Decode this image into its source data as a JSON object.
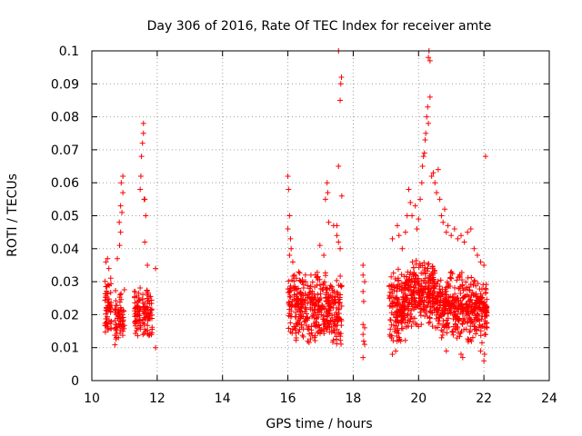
{
  "chart_data": {
    "type": "scatter",
    "title": "Day 306 of 2016, Rate Of TEC Index for receiver amte",
    "xlabel": "GPS time / hours",
    "ylabel": "ROTI / TECUs",
    "xlim": [
      10,
      24
    ],
    "ylim": [
      0,
      0.1
    ],
    "grid": true,
    "marker": "+",
    "x_ticks": [
      {
        "value": 10,
        "label": "10"
      },
      {
        "value": 12,
        "label": "12"
      },
      {
        "value": 14,
        "label": "14"
      },
      {
        "value": 16,
        "label": "16"
      },
      {
        "value": 18,
        "label": "18"
      },
      {
        "value": 20,
        "label": "20"
      },
      {
        "value": 22,
        "label": "22"
      },
      {
        "value": 24,
        "label": "24"
      }
    ],
    "y_ticks": [
      {
        "value": 0,
        "label": "0"
      },
      {
        "value": 0.01,
        "label": "0.01"
      },
      {
        "value": 0.02,
        "label": "0.02"
      },
      {
        "value": 0.03,
        "label": "0.03"
      },
      {
        "value": 0.04,
        "label": "0.04"
      },
      {
        "value": 0.05,
        "label": "0.05"
      },
      {
        "value": 0.06,
        "label": "0.06"
      },
      {
        "value": 0.07,
        "label": "0.07"
      },
      {
        "value": 0.08,
        "label": "0.08"
      },
      {
        "value": 0.09,
        "label": "0.09"
      },
      {
        "value": 0.1,
        "label": "0.1"
      }
    ],
    "series": [
      {
        "name": "ROTI",
        "color": "#ff0000",
        "clusters": [
          {
            "x_range": [
              10.4,
              10.6
            ],
            "y_range": [
              0.012,
              0.032
            ],
            "count": 60
          },
          {
            "x_range": [
              10.7,
              11.0
            ],
            "y_range": [
              0.01,
              0.03
            ],
            "count": 70
          },
          {
            "x_range": [
              11.3,
              11.5
            ],
            "y_range": [
              0.012,
              0.03
            ],
            "count": 55
          },
          {
            "x_range": [
              11.55,
              11.85
            ],
            "y_range": [
              0.012,
              0.03
            ],
            "count": 70
          },
          {
            "x_range": [
              16.0,
              16.5
            ],
            "y_range": [
              0.012,
              0.034
            ],
            "count": 130
          },
          {
            "x_range": [
              16.5,
              17.2
            ],
            "y_range": [
              0.01,
              0.034
            ],
            "count": 170
          },
          {
            "x_range": [
              17.2,
              17.65
            ],
            "y_range": [
              0.01,
              0.034
            ],
            "count": 120
          },
          {
            "x_range": [
              19.1,
              19.6
            ],
            "y_range": [
              0.01,
              0.034
            ],
            "count": 150
          },
          {
            "x_range": [
              19.6,
              20.5
            ],
            "y_range": [
              0.015,
              0.038
            ],
            "count": 260
          },
          {
            "x_range": [
              20.5,
              21.5
            ],
            "y_range": [
              0.012,
              0.034
            ],
            "count": 260
          },
          {
            "x_range": [
              21.5,
              22.1
            ],
            "y_range": [
              0.01,
              0.032
            ],
            "count": 170
          }
        ],
        "points": [
          [
            10.43,
            0.036
          ],
          [
            10.48,
            0.037
          ],
          [
            10.52,
            0.034
          ],
          [
            10.78,
            0.037
          ],
          [
            10.85,
            0.041
          ],
          [
            10.88,
            0.045
          ],
          [
            10.84,
            0.048
          ],
          [
            10.92,
            0.051
          ],
          [
            10.95,
            0.057
          ],
          [
            10.9,
            0.06
          ],
          [
            10.95,
            0.062
          ],
          [
            10.88,
            0.053
          ],
          [
            11.48,
            0.058
          ],
          [
            11.5,
            0.062
          ],
          [
            11.52,
            0.068
          ],
          [
            11.55,
            0.072
          ],
          [
            11.58,
            0.075
          ],
          [
            11.58,
            0.078
          ],
          [
            11.6,
            0.055
          ],
          [
            11.62,
            0.055
          ],
          [
            11.65,
            0.05
          ],
          [
            11.62,
            0.042
          ],
          [
            11.7,
            0.035
          ],
          [
            11.95,
            0.034
          ],
          [
            11.95,
            0.01
          ],
          [
            16.0,
            0.062
          ],
          [
            16.02,
            0.058
          ],
          [
            16.05,
            0.05
          ],
          [
            16.0,
            0.046
          ],
          [
            16.08,
            0.043
          ],
          [
            16.1,
            0.04
          ],
          [
            16.05,
            0.038
          ],
          [
            16.15,
            0.036
          ],
          [
            16.98,
            0.041
          ],
          [
            17.1,
            0.038
          ],
          [
            17.15,
            0.055
          ],
          [
            17.2,
            0.06
          ],
          [
            17.22,
            0.057
          ],
          [
            17.25,
            0.048
          ],
          [
            17.4,
            0.047
          ],
          [
            17.5,
            0.047
          ],
          [
            17.5,
            0.044
          ],
          [
            17.55,
            0.042
          ],
          [
            17.6,
            0.04
          ],
          [
            17.55,
            0.065
          ],
          [
            17.6,
            0.085
          ],
          [
            17.62,
            0.09
          ],
          [
            17.64,
            0.092
          ],
          [
            17.55,
            0.1
          ],
          [
            17.65,
            0.056
          ],
          [
            18.3,
            0.035
          ],
          [
            18.3,
            0.032
          ],
          [
            18.35,
            0.03
          ],
          [
            18.3,
            0.027
          ],
          [
            18.32,
            0.024
          ],
          [
            18.3,
            0.017
          ],
          [
            18.35,
            0.016
          ],
          [
            18.3,
            0.014
          ],
          [
            18.32,
            0.012
          ],
          [
            18.35,
            0.011
          ],
          [
            18.3,
            0.007
          ],
          [
            19.2,
            0.043
          ],
          [
            19.35,
            0.047
          ],
          [
            19.4,
            0.044
          ],
          [
            19.5,
            0.04
          ],
          [
            19.6,
            0.045
          ],
          [
            19.65,
            0.05
          ],
          [
            19.7,
            0.058
          ],
          [
            19.75,
            0.054
          ],
          [
            19.8,
            0.05
          ],
          [
            19.9,
            0.053
          ],
          [
            19.95,
            0.046
          ],
          [
            20.0,
            0.049
          ],
          [
            20.05,
            0.055
          ],
          [
            20.1,
            0.06
          ],
          [
            20.12,
            0.065
          ],
          [
            20.15,
            0.068
          ],
          [
            20.18,
            0.069
          ],
          [
            20.2,
            0.073
          ],
          [
            20.22,
            0.075
          ],
          [
            20.25,
            0.08
          ],
          [
            20.28,
            0.083
          ],
          [
            20.3,
            0.078
          ],
          [
            20.35,
            0.086
          ],
          [
            20.3,
            0.098
          ],
          [
            20.32,
            0.1
          ],
          [
            20.35,
            0.097
          ],
          [
            20.4,
            0.062
          ],
          [
            20.45,
            0.063
          ],
          [
            20.5,
            0.06
          ],
          [
            20.55,
            0.057
          ],
          [
            20.6,
            0.064
          ],
          [
            20.65,
            0.055
          ],
          [
            20.7,
            0.05
          ],
          [
            20.75,
            0.048
          ],
          [
            20.8,
            0.052
          ],
          [
            20.85,
            0.045
          ],
          [
            20.9,
            0.047
          ],
          [
            21.0,
            0.044
          ],
          [
            21.1,
            0.046
          ],
          [
            21.2,
            0.043
          ],
          [
            21.3,
            0.044
          ],
          [
            21.4,
            0.042
          ],
          [
            21.5,
            0.045
          ],
          [
            21.6,
            0.046
          ],
          [
            21.7,
            0.04
          ],
          [
            21.8,
            0.038
          ],
          [
            21.9,
            0.036
          ],
          [
            22.0,
            0.035
          ],
          [
            22.05,
            0.068
          ],
          [
            21.9,
            0.009
          ],
          [
            22.0,
            0.006
          ],
          [
            22.02,
            0.008
          ],
          [
            21.3,
            0.008
          ],
          [
            21.35,
            0.007
          ],
          [
            20.85,
            0.009
          ],
          [
            19.2,
            0.008
          ],
          [
            19.3,
            0.009
          ]
        ]
      }
    ]
  }
}
